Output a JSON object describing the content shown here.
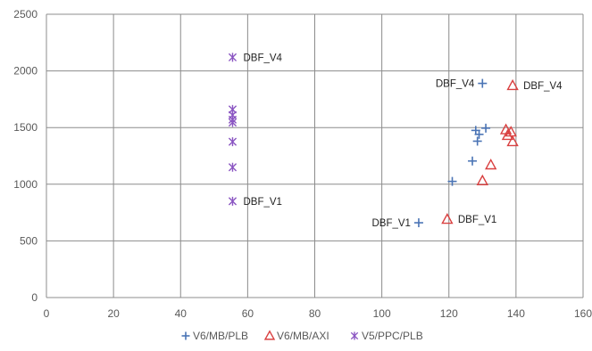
{
  "chart_data": {
    "type": "scatter",
    "title": "",
    "xlabel": "",
    "ylabel": "",
    "xlim": [
      0,
      160
    ],
    "ylim": [
      0,
      2500
    ],
    "x_ticks": [
      0,
      20,
      40,
      60,
      80,
      100,
      120,
      140,
      160
    ],
    "y_ticks": [
      0,
      500,
      1000,
      1500,
      2000,
      2500
    ],
    "grid": true,
    "legend_position": "bottom",
    "series": [
      {
        "name": "V6/MB/PLB",
        "marker": "plus",
        "color": "#4a74b5",
        "points": [
          {
            "x": 111,
            "y": 660
          },
          {
            "x": 121,
            "y": 1025
          },
          {
            "x": 127,
            "y": 1205
          },
          {
            "x": 128,
            "y": 1475
          },
          {
            "x": 128.5,
            "y": 1380
          },
          {
            "x": 129,
            "y": 1440
          },
          {
            "x": 130,
            "y": 1890
          },
          {
            "x": 131,
            "y": 1495
          }
        ]
      },
      {
        "name": "V6/MB/AXI",
        "marker": "triangle",
        "color": "#d94040",
        "points": [
          {
            "x": 119.5,
            "y": 690
          },
          {
            "x": 130,
            "y": 1030
          },
          {
            "x": 132.5,
            "y": 1170
          },
          {
            "x": 137,
            "y": 1480
          },
          {
            "x": 137.5,
            "y": 1430
          },
          {
            "x": 138.5,
            "y": 1460
          },
          {
            "x": 139,
            "y": 1375
          },
          {
            "x": 139,
            "y": 1870
          }
        ]
      },
      {
        "name": "V5/PPC/PLB",
        "marker": "star",
        "color": "#8a55c2",
        "points": [
          {
            "x": 55.5,
            "y": 850
          },
          {
            "x": 55.5,
            "y": 1150
          },
          {
            "x": 55.5,
            "y": 1375
          },
          {
            "x": 55.5,
            "y": 1545
          },
          {
            "x": 55.5,
            "y": 1570
          },
          {
            "x": 55.5,
            "y": 1610
          },
          {
            "x": 55.5,
            "y": 1660
          },
          {
            "x": 55.5,
            "y": 2120
          }
        ]
      }
    ],
    "annotations": [
      {
        "text": "DBF_V4",
        "x": 55.5,
        "y": 2120,
        "side": "right"
      },
      {
        "text": "DBF_V1",
        "x": 55.5,
        "y": 850,
        "side": "right"
      },
      {
        "text": "DBF_V4",
        "x": 130,
        "y": 1890,
        "side": "left"
      },
      {
        "text": "DBF_V4",
        "x": 139,
        "y": 1870,
        "side": "right"
      },
      {
        "text": "DBF_V1",
        "x": 111,
        "y": 660,
        "side": "left"
      },
      {
        "text": "DBF_V1",
        "x": 119.5,
        "y": 690,
        "side": "right"
      }
    ]
  }
}
